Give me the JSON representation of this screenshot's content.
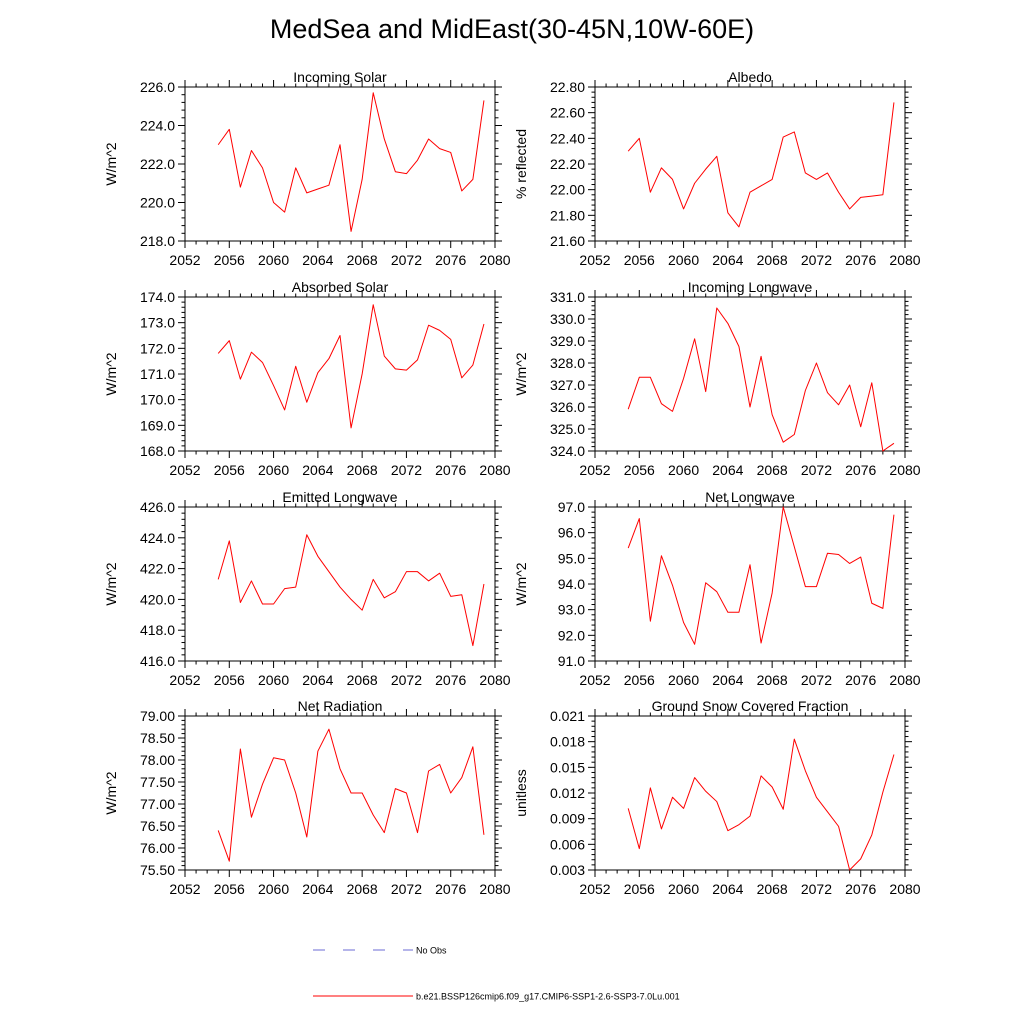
{
  "title": "MedSea and MidEast(30-45N,10W-60E)",
  "legend": {
    "obs_label": "No Obs",
    "obs_color": "#6b6bd6",
    "model_label": "b.e21.BSSP126cmip6.f09_g17.CMIP6-SSP1-2.6-SSP3-7.0Lu.001",
    "model_color": "#ff0000"
  },
  "chart_data": [
    {
      "type": "line",
      "title": "Incoming Solar",
      "ylabel": "W/m^2",
      "xlim": [
        2052,
        2080
      ],
      "ylim": [
        218,
        226
      ],
      "xticks": [
        "2052",
        "2056",
        "2060",
        "2064",
        "2068",
        "2072",
        "2076",
        "2080"
      ],
      "yticks": [
        "218.0",
        "220.0",
        "222.0",
        "224.0",
        "226.0"
      ],
      "x": [
        2055,
        2056,
        2057,
        2058,
        2059,
        2060,
        2061,
        2062,
        2063,
        2064,
        2065,
        2066,
        2067,
        2068,
        2069,
        2070,
        2071,
        2072,
        2073,
        2074,
        2075,
        2076,
        2077,
        2078,
        2079
      ],
      "series": [
        {
          "values": [
            223.0,
            223.8,
            220.8,
            222.7,
            221.8,
            220.0,
            219.5,
            221.8,
            220.5,
            220.7,
            220.9,
            223.0,
            218.5,
            221.2,
            225.7,
            223.3,
            221.6,
            221.5,
            222.2,
            223.3,
            222.8,
            222.6,
            220.6,
            221.2,
            225.3
          ]
        }
      ]
    },
    {
      "type": "line",
      "title": "Albedo",
      "ylabel": "% reflected",
      "xlim": [
        2052,
        2080
      ],
      "ylim": [
        21.6,
        22.8
      ],
      "xticks": [
        "2052",
        "2056",
        "2060",
        "2064",
        "2068",
        "2072",
        "2076",
        "2080"
      ],
      "yticks": [
        "21.60",
        "21.80",
        "22.00",
        "22.20",
        "22.40",
        "22.60",
        "22.80"
      ],
      "x": [
        2055,
        2056,
        2057,
        2058,
        2059,
        2060,
        2061,
        2062,
        2063,
        2064,
        2065,
        2066,
        2067,
        2068,
        2069,
        2070,
        2071,
        2072,
        2073,
        2074,
        2075,
        2076,
        2077,
        2078,
        2079
      ],
      "series": [
        {
          "values": [
            22.3,
            22.4,
            21.98,
            22.17,
            22.08,
            21.85,
            22.05,
            22.16,
            22.26,
            21.82,
            21.71,
            21.98,
            22.03,
            22.08,
            22.41,
            22.45,
            22.13,
            22.08,
            22.13,
            21.98,
            21.85,
            21.94,
            21.95,
            21.96,
            22.68
          ]
        }
      ]
    },
    {
      "type": "line",
      "title": "Absorbed Solar",
      "ylabel": "W/m^2",
      "xlim": [
        2052,
        2080
      ],
      "ylim": [
        168,
        174
      ],
      "xticks": [
        "2052",
        "2056",
        "2060",
        "2064",
        "2068",
        "2072",
        "2076",
        "2080"
      ],
      "yticks": [
        "168.0",
        "169.0",
        "170.0",
        "171.0",
        "172.0",
        "173.0",
        "174.0"
      ],
      "x": [
        2055,
        2056,
        2057,
        2058,
        2059,
        2060,
        2061,
        2062,
        2063,
        2064,
        2065,
        2066,
        2067,
        2068,
        2069,
        2070,
        2071,
        2072,
        2073,
        2074,
        2075,
        2076,
        2077,
        2078,
        2079
      ],
      "series": [
        {
          "values": [
            171.8,
            172.3,
            170.8,
            171.85,
            171.45,
            170.55,
            169.6,
            171.3,
            169.9,
            171.05,
            171.6,
            172.5,
            168.9,
            171.0,
            173.7,
            171.7,
            171.2,
            171.15,
            171.55,
            172.9,
            172.7,
            172.35,
            170.85,
            171.35,
            172.95
          ]
        }
      ]
    },
    {
      "type": "line",
      "title": "Incoming Longwave",
      "ylabel": "W/m^2",
      "xlim": [
        2052,
        2080
      ],
      "ylim": [
        324,
        331
      ],
      "xticks": [
        "2052",
        "2056",
        "2060",
        "2064",
        "2068",
        "2072",
        "2076",
        "2080"
      ],
      "yticks": [
        "324.0",
        "325.0",
        "326.0",
        "327.0",
        "328.0",
        "329.0",
        "330.0",
        "331.0"
      ],
      "x": [
        2055,
        2056,
        2057,
        2058,
        2059,
        2060,
        2061,
        2062,
        2063,
        2064,
        2065,
        2066,
        2067,
        2068,
        2069,
        2070,
        2071,
        2072,
        2073,
        2074,
        2075,
        2076,
        2077,
        2078,
        2079
      ],
      "series": [
        {
          "values": [
            325.9,
            327.35,
            327.35,
            326.15,
            325.8,
            327.3,
            329.1,
            326.7,
            330.5,
            329.8,
            328.75,
            326.0,
            328.3,
            325.65,
            324.4,
            324.75,
            326.75,
            328.0,
            326.65,
            326.1,
            327.0,
            325.1,
            327.1,
            324.0,
            324.35
          ]
        }
      ]
    },
    {
      "type": "line",
      "title": "Emitted Longwave",
      "ylabel": "W/m^2",
      "xlim": [
        2052,
        2080
      ],
      "ylim": [
        416,
        426
      ],
      "xticks": [
        "2052",
        "2056",
        "2060",
        "2064",
        "2068",
        "2072",
        "2076",
        "2080"
      ],
      "yticks": [
        "416.0",
        "418.0",
        "420.0",
        "422.0",
        "424.0",
        "426.0"
      ],
      "x": [
        2055,
        2056,
        2057,
        2058,
        2059,
        2060,
        2061,
        2062,
        2063,
        2064,
        2065,
        2066,
        2067,
        2068,
        2069,
        2070,
        2071,
        2072,
        2073,
        2074,
        2075,
        2076,
        2077,
        2078,
        2079
      ],
      "series": [
        {
          "values": [
            421.3,
            423.8,
            419.8,
            421.2,
            419.7,
            419.7,
            420.7,
            420.8,
            424.2,
            422.8,
            421.8,
            420.8,
            420.0,
            419.3,
            421.3,
            420.1,
            420.5,
            421.8,
            421.8,
            421.2,
            421.7,
            420.2,
            420.3,
            417.0,
            421.0
          ]
        }
      ]
    },
    {
      "type": "line",
      "title": "Net Longwave",
      "ylabel": "W/m^2",
      "xlim": [
        2052,
        2080
      ],
      "ylim": [
        91,
        97
      ],
      "xticks": [
        "2052",
        "2056",
        "2060",
        "2064",
        "2068",
        "2072",
        "2076",
        "2080"
      ],
      "yticks": [
        "91.0",
        "92.0",
        "93.0",
        "94.0",
        "95.0",
        "96.0",
        "97.0"
      ],
      "x": [
        2055,
        2056,
        2057,
        2058,
        2059,
        2060,
        2061,
        2062,
        2063,
        2064,
        2065,
        2066,
        2067,
        2068,
        2069,
        2070,
        2071,
        2072,
        2073,
        2074,
        2075,
        2076,
        2077,
        2078,
        2079
      ],
      "series": [
        {
          "values": [
            95.4,
            96.55,
            92.55,
            95.1,
            93.95,
            92.5,
            91.65,
            94.05,
            93.7,
            92.9,
            92.9,
            94.75,
            91.7,
            93.65,
            97.0,
            95.45,
            93.9,
            93.9,
            95.2,
            95.15,
            94.8,
            95.05,
            93.25,
            93.05,
            96.7
          ]
        }
      ]
    },
    {
      "type": "line",
      "title": "Net Radiation",
      "ylabel": "W/m^2",
      "xlim": [
        2052,
        2080
      ],
      "ylim": [
        75.5,
        79
      ],
      "xticks": [
        "2052",
        "2056",
        "2060",
        "2064",
        "2068",
        "2072",
        "2076",
        "2080"
      ],
      "yticks": [
        "75.50",
        "76.00",
        "76.50",
        "77.00",
        "77.50",
        "78.00",
        "78.50",
        "79.00"
      ],
      "x": [
        2055,
        2056,
        2057,
        2058,
        2059,
        2060,
        2061,
        2062,
        2063,
        2064,
        2065,
        2066,
        2067,
        2068,
        2069,
        2070,
        2071,
        2072,
        2073,
        2074,
        2075,
        2076,
        2077,
        2078,
        2079
      ],
      "series": [
        {
          "values": [
            76.4,
            75.7,
            78.25,
            76.7,
            77.45,
            78.05,
            78.0,
            77.25,
            76.25,
            78.2,
            78.7,
            77.8,
            77.25,
            77.25,
            76.75,
            76.35,
            77.35,
            77.25,
            76.35,
            77.75,
            77.9,
            77.25,
            77.6,
            78.3,
            76.3
          ]
        }
      ]
    },
    {
      "type": "line",
      "title": "Ground Snow Covered Fraction",
      "ylabel": "unitless",
      "xlim": [
        2052,
        2080
      ],
      "ylim": [
        0.003,
        0.021
      ],
      "xticks": [
        "2052",
        "2056",
        "2060",
        "2064",
        "2068",
        "2072",
        "2076",
        "2080"
      ],
      "yticks": [
        "0.003",
        "0.006",
        "0.009",
        "0.012",
        "0.015",
        "0.018",
        "0.021"
      ],
      "x": [
        2055,
        2056,
        2057,
        2058,
        2059,
        2060,
        2061,
        2062,
        2063,
        2064,
        2065,
        2066,
        2067,
        2068,
        2069,
        2070,
        2071,
        2072,
        2073,
        2074,
        2075,
        2076,
        2077,
        2078,
        2079
      ],
      "series": [
        {
          "values": [
            0.0102,
            0.0055,
            0.0126,
            0.0078,
            0.0115,
            0.0102,
            0.0138,
            0.0122,
            0.011,
            0.0076,
            0.0083,
            0.0093,
            0.014,
            0.0127,
            0.0101,
            0.0183,
            0.0146,
            0.0115,
            0.0098,
            0.0081,
            0.003,
            0.0043,
            0.0071,
            0.0121,
            0.0165
          ]
        }
      ]
    }
  ]
}
